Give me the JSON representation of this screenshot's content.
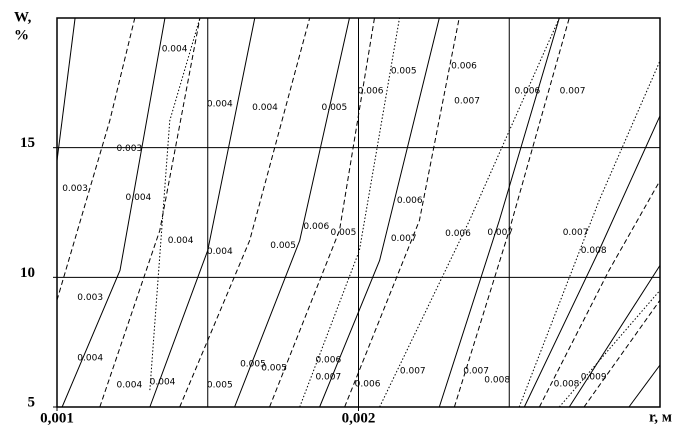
{
  "chart_data": {
    "type": "contour",
    "ylabel": [
      "W,",
      "%"
    ],
    "xlabel": "r, м",
    "xlim": [
      0.001,
      0.003
    ],
    "ylim": [
      5,
      20
    ],
    "xticks": [
      {
        "value": 0.001,
        "label": "0,001"
      },
      {
        "value": 0.002,
        "label": "0,002"
      }
    ],
    "yticks": [
      5,
      10,
      15
    ],
    "xgrid": [
      0.001,
      0.0015,
      0.002,
      0.0025,
      0.003
    ],
    "ygrid": [
      10,
      15,
      20
    ],
    "color": "#000000",
    "lines": [
      {
        "style": "solid",
        "x": [
          0.001,
          0.00106
        ],
        "y": [
          14.5,
          20
        ]
      },
      {
        "style": "dashed",
        "x": [
          0.001,
          0.001175,
          0.001258
        ],
        "y": [
          9.12,
          16.04,
          20
        ]
      },
      {
        "style": "solid",
        "x": [
          0.001017,
          0.001209,
          0.001358
        ],
        "y": [
          5,
          10.27,
          20
        ]
      },
      {
        "style": "dashed",
        "x": [
          0.001142,
          0.001341,
          0.001474
        ],
        "y": [
          5,
          11.81,
          20
        ]
      },
      {
        "style": "dotted",
        "x": [
          0.001308,
          0.001374,
          0.001474
        ],
        "y": [
          5.65,
          16.04,
          20
        ]
      },
      {
        "style": "solid",
        "x": [
          0.001308,
          0.0015,
          0.001656
        ],
        "y": [
          5,
          11.04,
          20
        ]
      },
      {
        "style": "dashed",
        "x": [
          0.001407,
          0.001639,
          0.001838
        ],
        "y": [
          5,
          11.42,
          20
        ]
      },
      {
        "style": "solid",
        "x": [
          0.001589,
          0.001805,
          0.00197
        ],
        "y": [
          5,
          11.42,
          20
        ]
      },
      {
        "style": "dashed",
        "x": [
          0.001705,
          0.001937,
          0.002053
        ],
        "y": [
          5,
          11.81,
          20
        ]
      },
      {
        "style": "dotted",
        "x": [
          0.001805,
          0.002003,
          0.002136
        ],
        "y": [
          5,
          11.04,
          20
        ]
      },
      {
        "style": "solid",
        "x": [
          0.001871,
          0.00207,
          0.002268
        ],
        "y": [
          5,
          10.65,
          20
        ]
      },
      {
        "style": "dashed",
        "x": [
          0.001954,
          0.002202,
          0.002334
        ],
        "y": [
          5,
          12.19,
          20
        ]
      },
      {
        "style": "dotted",
        "x": [
          0.00207,
          0.002368,
          0.002666
        ],
        "y": [
          5,
          12.19,
          20
        ]
      },
      {
        "style": "solid",
        "x": [
          0.002268,
          0.002467,
          0.002666
        ],
        "y": [
          5,
          12.19,
          20
        ]
      },
      {
        "style": "dashed",
        "x": [
          0.002318,
          0.0025,
          0.002699
        ],
        "y": [
          5,
          11.81,
          20
        ]
      },
      {
        "style": "dotted",
        "x": [
          0.002533,
          0.002798,
          0.003
        ],
        "y": [
          5,
          12.96,
          18.35
        ]
      },
      {
        "style": "solid",
        "x": [
          0.00255,
          0.002798,
          0.003
        ],
        "y": [
          5,
          11.04,
          16.23
        ]
      },
      {
        "style": "dashed",
        "x": [
          0.0026,
          0.002831,
          0.003
        ],
        "y": [
          5,
          10.27,
          13.73
        ]
      },
      {
        "style": "solid",
        "x": [
          0.002699,
          0.003
        ],
        "y": [
          5,
          10.46
        ]
      },
      {
        "style": "dotted",
        "x": [
          0.002666,
          0.003
        ],
        "y": [
          5,
          9.5
        ]
      },
      {
        "style": "dashed",
        "x": [
          0.002748,
          0.003
        ],
        "y": [
          5,
          9.12
        ]
      },
      {
        "style": "solid",
        "x": [
          0.002897,
          0.003
        ],
        "y": [
          5,
          6.62
        ]
      }
    ],
    "annotations": [
      {
        "text": "0.004",
        "x": 0.00139,
        "y": 18.81
      },
      {
        "text": "0.004",
        "x": 0.00154,
        "y": 16.69
      },
      {
        "text": "0.004",
        "x": 0.00169,
        "y": 16.54
      },
      {
        "text": "0.005",
        "x": 0.00192,
        "y": 16.54
      },
      {
        "text": "0.006",
        "x": 0.00204,
        "y": 17.19
      },
      {
        "text": "0.005",
        "x": 0.00215,
        "y": 17.96
      },
      {
        "text": "0.006",
        "x": 0.00235,
        "y": 18.15
      },
      {
        "text": "0.007",
        "x": 0.00236,
        "y": 16.8
      },
      {
        "text": "0.006",
        "x": 0.00256,
        "y": 17.19
      },
      {
        "text": "0.007",
        "x": 0.00271,
        "y": 17.19
      },
      {
        "text": "0.003",
        "x": 0.00124,
        "y": 14.96
      },
      {
        "text": "0.003",
        "x": 0.00106,
        "y": 13.42
      },
      {
        "text": "0.004",
        "x": 0.00127,
        "y": 13.08
      },
      {
        "text": "0.004",
        "x": 0.00141,
        "y": 11.42
      },
      {
        "text": "0.004",
        "x": 0.00154,
        "y": 11.0
      },
      {
        "text": "0.005",
        "x": 0.00175,
        "y": 11.23
      },
      {
        "text": "0.006",
        "x": 0.00186,
        "y": 11.96
      },
      {
        "text": "0.005",
        "x": 0.00195,
        "y": 11.73
      },
      {
        "text": "0.006",
        "x": 0.00217,
        "y": 12.96
      },
      {
        "text": "0.007",
        "x": 0.00215,
        "y": 11.5
      },
      {
        "text": "0.006",
        "x": 0.00233,
        "y": 11.69
      },
      {
        "text": "0.007",
        "x": 0.00247,
        "y": 11.73
      },
      {
        "text": "0.007",
        "x": 0.00272,
        "y": 11.73
      },
      {
        "text": "0.008",
        "x": 0.00278,
        "y": 11.04
      },
      {
        "text": "0.003",
        "x": 0.00111,
        "y": 9.23
      },
      {
        "text": "0.004",
        "x": 0.00111,
        "y": 6.88
      },
      {
        "text": "0.004",
        "x": 0.00124,
        "y": 5.85
      },
      {
        "text": "0.004",
        "x": 0.00135,
        "y": 5.96
      },
      {
        "text": "0.005",
        "x": 0.00154,
        "y": 5.85
      },
      {
        "text": "0.005",
        "x": 0.00165,
        "y": 6.65
      },
      {
        "text": "0.005",
        "x": 0.00172,
        "y": 6.5
      },
      {
        "text": "0.006",
        "x": 0.0019,
        "y": 6.81
      },
      {
        "text": "0.007",
        "x": 0.0019,
        "y": 6.15
      },
      {
        "text": "0.006",
        "x": 0.00203,
        "y": 5.88
      },
      {
        "text": "0.007",
        "x": 0.00218,
        "y": 6.38
      },
      {
        "text": "0.007",
        "x": 0.00239,
        "y": 6.38
      },
      {
        "text": "0.008",
        "x": 0.00246,
        "y": 6.04
      },
      {
        "text": "0.008",
        "x": 0.00269,
        "y": 5.88
      },
      {
        "text": "0.009",
        "x": 0.00278,
        "y": 6.15
      }
    ]
  }
}
